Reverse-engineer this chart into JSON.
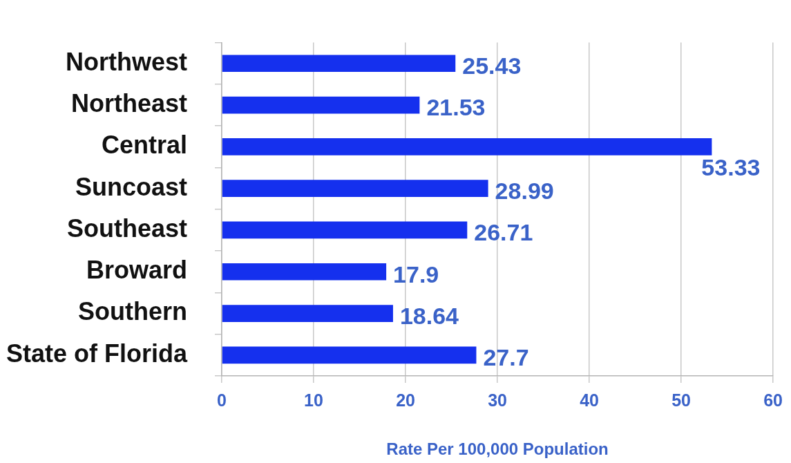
{
  "chart_data": {
    "type": "bar",
    "orientation": "horizontal",
    "categories": [
      "Northwest",
      "Northeast",
      "Central",
      "Suncoast",
      "Southeast",
      "Broward",
      "Southern",
      "State of Florida"
    ],
    "values": [
      25.43,
      21.53,
      53.33,
      28.99,
      26.71,
      17.9,
      18.64,
      27.7
    ],
    "color": "#1530ee",
    "xlim": [
      0,
      60
    ],
    "xticks": [
      0,
      10,
      20,
      30,
      40,
      50,
      60
    ],
    "xlabel": "Rate Per 100,000 Population",
    "data_labels": true,
    "grid": "x"
  }
}
